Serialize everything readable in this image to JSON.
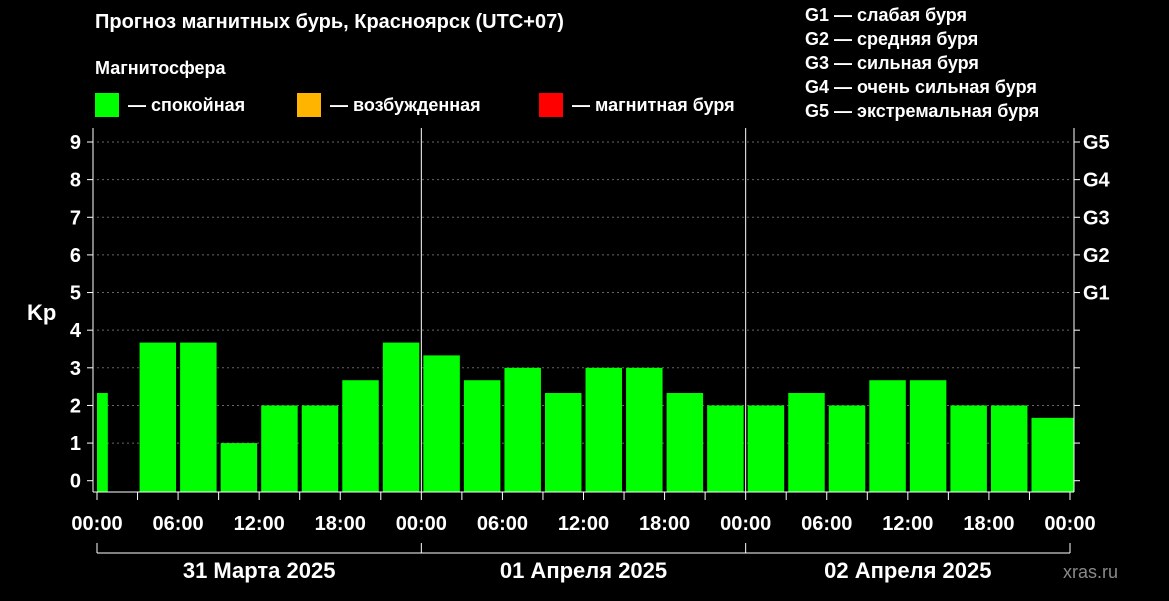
{
  "header": {
    "title": "Прогноз магнитных бурь, Красноярск (UTC+07)",
    "legend_title": "Магнитосфера",
    "legend": [
      {
        "label": "— спокойная",
        "color": "#00FF00"
      },
      {
        "label": "— возбужденная",
        "color": "#FFB400"
      },
      {
        "label": "— магнитная буря",
        "color": "#FF0000"
      }
    ],
    "g_scale": [
      "G1 — слабая буря",
      "G2 — средняя буря",
      "G3 — сильная буря",
      "G4 — очень сильная буря",
      "G5 — экстремальная буря"
    ],
    "watermark": "xras.ru"
  },
  "chart_data": {
    "type": "bar",
    "ylabel": "Kp",
    "ylim": [
      0,
      9
    ],
    "y_ticks": [
      "0",
      "1",
      "2",
      "3",
      "4",
      "5",
      "6",
      "7",
      "8",
      "9"
    ],
    "right_ticks": [
      {
        "value": 5,
        "label": "G1"
      },
      {
        "value": 6,
        "label": "G2"
      },
      {
        "value": 7,
        "label": "G3"
      },
      {
        "value": 8,
        "label": "G4"
      },
      {
        "value": 9,
        "label": "G5"
      }
    ],
    "x_tick_labels": [
      "00:00",
      "06:00",
      "12:00",
      "18:00",
      "00:00",
      "06:00",
      "12:00",
      "18:00",
      "00:00",
      "06:00",
      "12:00",
      "18:00",
      "00:00"
    ],
    "days": [
      "31 Марта 2025",
      "01 Апреля 2025",
      "02 Апреля 2025"
    ],
    "bar_color": "#00FF00",
    "series": [
      {
        "x": 0.0,
        "width_hours": 0.8,
        "y": 2.33
      },
      {
        "x": 3.0,
        "y": 3.67
      },
      {
        "x": 6.0,
        "y": 3.67
      },
      {
        "x": 9.0,
        "y": 1.0
      },
      {
        "x": 12.0,
        "y": 2.0
      },
      {
        "x": 15.0,
        "y": 2.0
      },
      {
        "x": 18.0,
        "y": 2.67
      },
      {
        "x": 21.0,
        "y": 3.67
      },
      {
        "x": 24.0,
        "y": 3.33
      },
      {
        "x": 27.0,
        "y": 2.67
      },
      {
        "x": 30.0,
        "y": 3.0
      },
      {
        "x": 33.0,
        "y": 2.33
      },
      {
        "x": 36.0,
        "y": 3.0
      },
      {
        "x": 39.0,
        "y": 3.0
      },
      {
        "x": 42.0,
        "y": 2.33
      },
      {
        "x": 45.0,
        "y": 2.0
      },
      {
        "x": 48.0,
        "y": 2.0
      },
      {
        "x": 51.0,
        "y": 2.33
      },
      {
        "x": 54.0,
        "y": 2.0
      },
      {
        "x": 57.0,
        "y": 2.67
      },
      {
        "x": 60.0,
        "y": 2.67
      },
      {
        "x": 63.0,
        "y": 2.0
      },
      {
        "x": 66.0,
        "y": 2.0
      },
      {
        "x": 69.0,
        "y": 1.67
      },
      {
        "x": 71.5,
        "width_hours": 0.8,
        "y": 1.67
      }
    ],
    "grid": true
  }
}
